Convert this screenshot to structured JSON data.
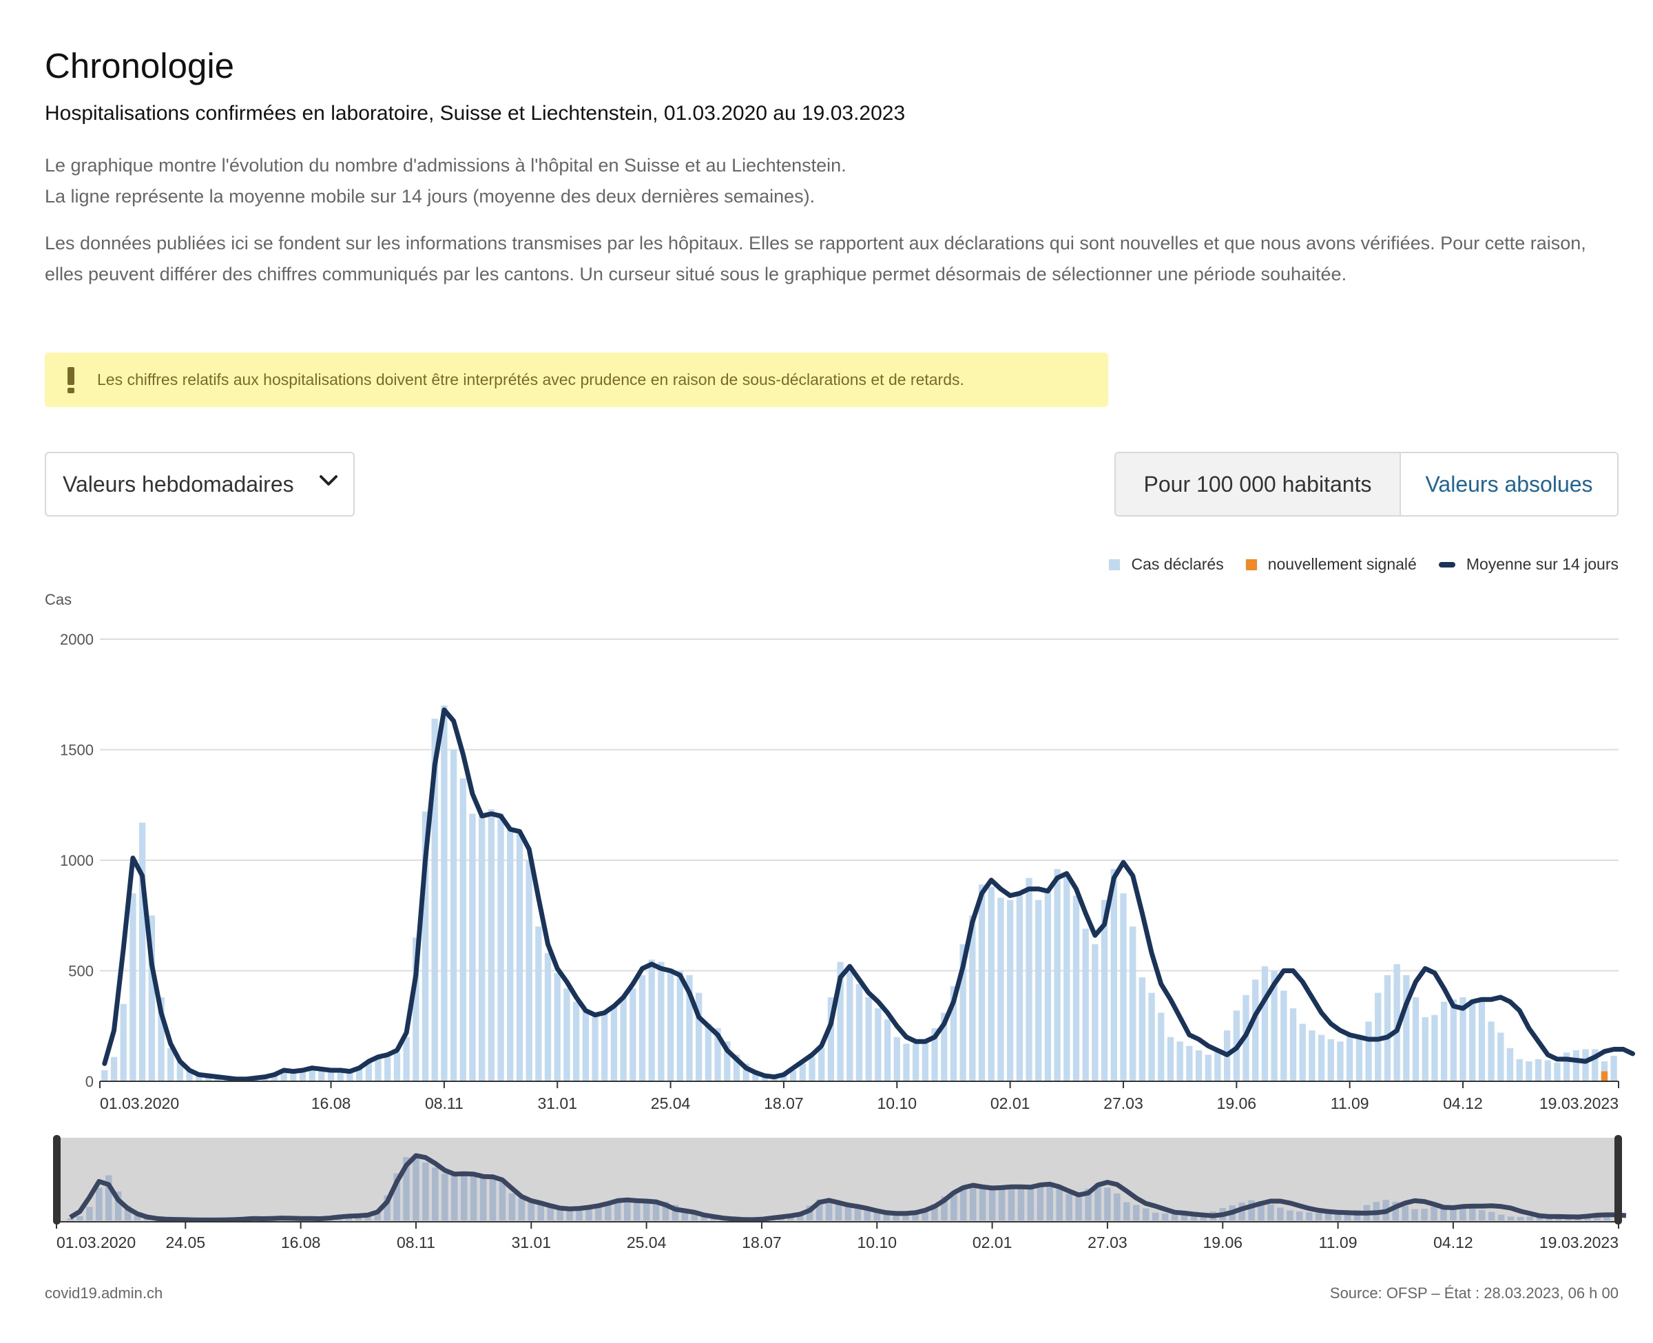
{
  "page": {
    "title": "Chronologie",
    "subtitle": "Hospitalisations confirmées en laboratoire, Suisse et Liechtenstein, 01.03.2020 au 19.03.2023",
    "description_1": "Le graphique montre l'évolution du nombre d'admissions à l'hôpital en Suisse et au Liechtenstein.",
    "description_2": "La ligne représente la moyenne mobile sur 14 jours (moyenne des deux dernières semaines).",
    "description_3": "Les données publiées ici se fondent sur les informations transmises par les hôpitaux. Elles se rapportent aux déclarations qui sont nouvelles et que nous avons vérifiées. Pour cette raison, elles peuvent différer des chiffres communiqués par les cantons. Un curseur situé sous le graphique permet désormais de sélectionner une période souhaitée.",
    "warning": "Les chiffres relatifs aux hospitalisations doivent être interprétés avec prudence en raison de sous-déclarations et de retards."
  },
  "controls": {
    "dropdown_value": "Valeurs hebdomadaires",
    "toggle_option_1": "Pour 100 000 habitants",
    "toggle_option_2": "Valeurs absolues"
  },
  "footer": {
    "site": "covid19.admin.ch",
    "source": "Source: OFSP – État : 28.03.2023, 06 h 00"
  },
  "colors": {
    "bars": "#c2daf0",
    "new_reported": "#f08a24",
    "line": "#1a3358",
    "link": "#1d6598"
  },
  "chart_data": {
    "type": "bar",
    "ylabel": "Cas",
    "ylim": [
      0,
      2000
    ],
    "yticks": [
      0,
      500,
      1000,
      1500,
      2000
    ],
    "xticks": [
      "01.03.2020",
      "16.08",
      "08.11",
      "31.01",
      "25.04",
      "18.07",
      "10.10",
      "02.01",
      "27.03",
      "19.06",
      "11.09",
      "04.12",
      "19.03.2023"
    ],
    "navigator_xticks": [
      "01.03.2020",
      "24.05",
      "16.08",
      "08.11",
      "31.01",
      "25.04",
      "18.07",
      "10.10",
      "02.01",
      "27.03",
      "19.06",
      "11.09",
      "04.12",
      "19.03.2023"
    ],
    "legend": [
      "Cas déclarés",
      "nouvellement signalé",
      "Moyenne sur 14 jours"
    ],
    "legend_position": "top-right",
    "grid": true,
    "weeks": 160,
    "series": [
      {
        "name": "Cas déclarés",
        "values": [
          50,
          110,
          350,
          850,
          1170,
          750,
          380,
          150,
          90,
          50,
          30,
          20,
          15,
          12,
          10,
          8,
          15,
          20,
          30,
          50,
          45,
          50,
          60,
          55,
          50,
          50,
          45,
          60,
          90,
          110,
          120,
          130,
          200,
          650,
          1220,
          1640,
          1700,
          1500,
          1370,
          1210,
          1200,
          1230,
          1210,
          1150,
          1120,
          1000,
          700,
          580,
          490,
          420,
          360,
          320,
          300,
          310,
          340,
          380,
          420,
          480,
          550,
          540,
          510,
          500,
          480,
          400,
          260,
          240,
          180,
          120,
          80,
          50,
          30,
          20,
          30,
          50,
          80,
          110,
          150,
          380,
          540,
          520,
          440,
          380,
          330,
          280,
          200,
          170,
          170,
          190,
          240,
          310,
          430,
          620,
          750,
          890,
          880,
          830,
          820,
          840,
          920,
          820,
          860,
          960,
          940,
          840,
          690,
          620,
          820,
          960,
          850,
          700,
          470,
          400,
          310,
          200,
          180,
          160,
          140,
          120,
          140,
          230,
          320,
          390,
          460,
          520,
          500,
          410,
          330,
          260,
          230,
          210,
          190,
          180,
          210,
          210,
          270,
          400,
          480,
          530,
          480,
          380,
          290,
          300,
          360,
          370,
          380,
          370,
          360,
          270,
          220,
          150,
          100,
          90,
          100,
          95,
          85,
          130,
          140,
          145,
          145,
          90,
          115
        ],
        "new_reported": [
          0,
          0,
          0,
          0,
          0,
          0,
          0,
          0,
          0,
          0,
          0,
          0,
          0,
          0,
          0,
          0,
          0,
          0,
          0,
          0,
          0,
          0,
          0,
          0,
          0,
          0,
          0,
          0,
          0,
          0,
          0,
          0,
          0,
          0,
          0,
          0,
          0,
          0,
          0,
          0,
          0,
          0,
          0,
          0,
          0,
          0,
          0,
          0,
          0,
          0,
          0,
          0,
          0,
          0,
          0,
          0,
          0,
          0,
          0,
          0,
          0,
          0,
          0,
          0,
          0,
          0,
          0,
          0,
          0,
          0,
          0,
          0,
          0,
          0,
          0,
          0,
          0,
          0,
          0,
          0,
          0,
          0,
          0,
          0,
          0,
          0,
          0,
          0,
          0,
          0,
          0,
          0,
          0,
          0,
          0,
          0,
          0,
          0,
          0,
          0,
          0,
          0,
          0,
          0,
          0,
          0,
          0,
          0,
          0,
          0,
          0,
          0,
          0,
          0,
          0,
          0,
          0,
          0,
          0,
          0,
          0,
          0,
          0,
          0,
          0,
          0,
          0,
          0,
          0,
          0,
          0,
          0,
          0,
          0,
          0,
          0,
          0,
          0,
          0,
          0,
          0,
          0,
          0,
          0,
          0,
          0,
          0,
          0,
          0,
          0,
          0,
          0,
          0,
          0,
          0,
          0,
          0,
          0,
          0,
          45
        ]
      },
      {
        "name": "Moyenne sur 14 jours",
        "values": [
          80,
          230,
          600,
          1010,
          930,
          530,
          310,
          170,
          90,
          50,
          30,
          25,
          20,
          15,
          10,
          10,
          15,
          20,
          30,
          50,
          45,
          50,
          60,
          55,
          50,
          50,
          45,
          60,
          90,
          110,
          120,
          140,
          220,
          480,
          1000,
          1430,
          1680,
          1630,
          1480,
          1300,
          1200,
          1210,
          1200,
          1140,
          1130,
          1050,
          830,
          620,
          510,
          450,
          380,
          320,
          300,
          310,
          340,
          380,
          440,
          510,
          530,
          510,
          500,
          480,
          400,
          290,
          250,
          210,
          140,
          100,
          60,
          40,
          25,
          20,
          30,
          60,
          90,
          120,
          160,
          260,
          470,
          520,
          460,
          400,
          360,
          310,
          250,
          200,
          180,
          180,
          200,
          260,
          360,
          520,
          720,
          850,
          910,
          870,
          840,
          850,
          870,
          870,
          860,
          920,
          940,
          870,
          760,
          660,
          710,
          920,
          990,
          930,
          760,
          580,
          440,
          370,
          290,
          210,
          190,
          160,
          140,
          120,
          150,
          210,
          300,
          370,
          440,
          500,
          500,
          450,
          380,
          310,
          260,
          230,
          210,
          200,
          190,
          190,
          200,
          230,
          350,
          450,
          510,
          490,
          420,
          340,
          330,
          360,
          370,
          370,
          380,
          360,
          320,
          240,
          180,
          120,
          100,
          100,
          95,
          90,
          110,
          135,
          145,
          145,
          125
        ]
      }
    ]
  }
}
